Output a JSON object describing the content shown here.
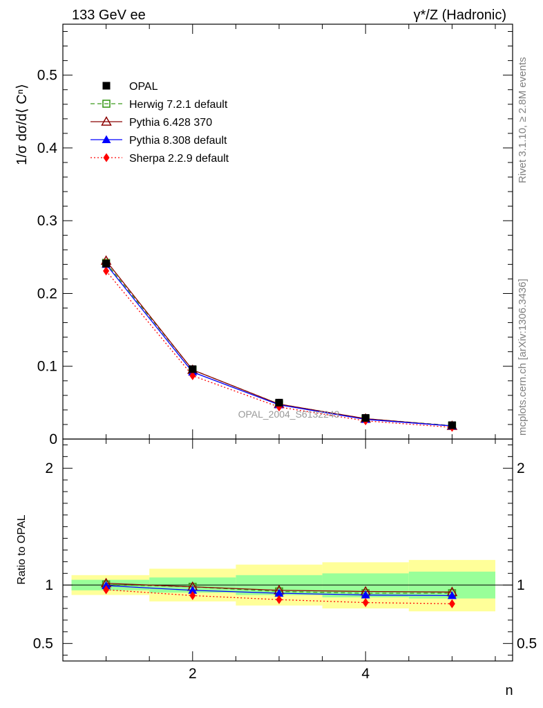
{
  "header": {
    "left": "133 GeV ee",
    "right": "γ*/Z (Hadronic)"
  },
  "side_labels": {
    "rivet": "Rivet 3.1.10, ≥ 2.8M events",
    "mcplots": "mcplots.cern.ch [arXiv:1306.3436]"
  },
  "watermark": "OPAL_2004_S6132243",
  "chart_data": [
    {
      "type": "line",
      "panel": "main",
      "ylabel": "1/σ dσ/d⟨ Cⁿ⟩",
      "xlim": [
        0.5,
        5.7
      ],
      "ylim": [
        0,
        0.57
      ],
      "y_ticks": [
        0,
        0.1,
        0.2,
        0.3,
        0.4,
        0.5
      ],
      "y_tick_labels": [
        "0",
        "0.1",
        "0.2",
        "0.3",
        "0.4",
        "0.5"
      ],
      "x": [
        1,
        2,
        3,
        4,
        5
      ],
      "legend_position": "top-left",
      "series": [
        {
          "name": "OPAL",
          "values": [
            0.241,
            0.096,
            0.05,
            0.029,
            0.019
          ],
          "color": "#000000",
          "marker": "square-filled",
          "line": "none"
        },
        {
          "name": "Herwig 7.2.1 default",
          "values": [
            0.242,
            0.095,
            0.048,
            0.028,
            0.0185
          ],
          "color": "#3a9a1a",
          "marker": "square-open",
          "line": "dashed"
        },
        {
          "name": "Pythia 6.428 370",
          "values": [
            0.245,
            0.095,
            0.048,
            0.028,
            0.018
          ],
          "color": "#8b0000",
          "marker": "triangle-open",
          "line": "solid"
        },
        {
          "name": "Pythia 8.308 default",
          "values": [
            0.24,
            0.092,
            0.047,
            0.027,
            0.018
          ],
          "color": "#0000ff",
          "marker": "triangle-filled",
          "line": "solid"
        },
        {
          "name": "Sherpa 2.2.9 default",
          "values": [
            0.231,
            0.087,
            0.044,
            0.025,
            0.016
          ],
          "color": "#ff0000",
          "marker": "diamond-filled",
          "line": "dotted"
        }
      ]
    },
    {
      "type": "line",
      "panel": "ratio",
      "ylabel": "Ratio to OPAL",
      "xlabel": "n",
      "xlim": [
        0.5,
        5.7
      ],
      "ylim": [
        0.35,
        2.25
      ],
      "y_ticks": [
        0.5,
        1,
        2
      ],
      "y_tick_labels": [
        "0.5",
        "1",
        "2"
      ],
      "x_ticks": [
        2,
        4
      ],
      "x_tick_labels": [
        "2",
        "4"
      ],
      "x": [
        1,
        2,
        3,
        4,
        5
      ],
      "uncertainty_bands": {
        "edges": [
          0.6,
          1.5,
          2.5,
          3.5,
          4.5,
          5.5
        ],
        "stat_low": [
          0.955,
          0.935,
          0.915,
          0.895,
          0.885
        ],
        "stat_high": [
          1.045,
          1.065,
          1.085,
          1.1,
          1.115
        ],
        "total_low": [
          0.915,
          0.86,
          0.825,
          0.8,
          0.775
        ],
        "total_high": [
          1.085,
          1.14,
          1.175,
          1.195,
          1.215
        ],
        "stat_color": "#99ff99",
        "total_color": "#ffff99"
      },
      "series": [
        {
          "name": "Herwig 7.2.1 default",
          "values": [
            1.005,
            0.985,
            0.945,
            0.93,
            0.93
          ],
          "color": "#3a9a1a",
          "marker": "square-open",
          "line": "dashed"
        },
        {
          "name": "Pythia 6.428 370",
          "values": [
            1.015,
            0.985,
            0.955,
            0.945,
            0.94
          ],
          "color": "#8b0000",
          "marker": "triangle-open",
          "line": "solid"
        },
        {
          "name": "Pythia 8.308 default",
          "values": [
            0.995,
            0.955,
            0.93,
            0.915,
            0.91
          ],
          "color": "#0000ff",
          "marker": "triangle-filled",
          "line": "solid"
        },
        {
          "name": "Sherpa 2.2.9 default",
          "values": [
            0.96,
            0.91,
            0.875,
            0.85,
            0.84
          ],
          "color": "#ff0000",
          "marker": "diamond-filled",
          "line": "dotted"
        }
      ]
    }
  ]
}
